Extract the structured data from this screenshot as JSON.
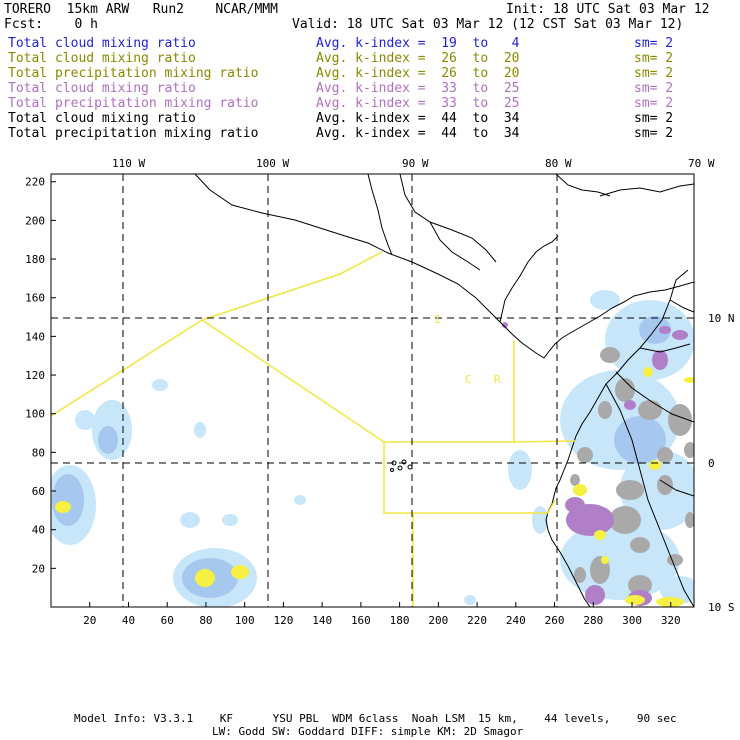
{
  "header": {
    "model": "TORERO  15km ARW   Run2    NCAR/MMM",
    "init": "Init: 18 UTC Sat 03 Mar 12",
    "fcst": "Fcst:    0 h",
    "valid": "Valid: 18 UTC Sat 03 Mar 12 (12 CST Sat 03 Mar 12)"
  },
  "legend": [
    {
      "field": "Total cloud mixing ratio",
      "index": "Avg. k-index =  19  to   4",
      "sm": "sm= 2",
      "color": "#1f1fd0"
    },
    {
      "field": "Total cloud mixing ratio",
      "index": "Avg. k-index =  26  to  20",
      "sm": "sm= 2",
      "color": "#8a8a00"
    },
    {
      "field": "Total precipitation mixing ratio",
      "index": "Avg. k-index =  26  to  20",
      "sm": "sm= 2",
      "color": "#8a8a00"
    },
    {
      "field": "Total cloud mixing ratio",
      "index": "Avg. k-index =  33  to  25",
      "sm": "sm= 2",
      "color": "#b070c0"
    },
    {
      "field": "Total precipitation mixing ratio",
      "index": "Avg. k-index =  33  to  25",
      "sm": "sm= 2",
      "color": "#b070c0"
    },
    {
      "field": "Total cloud mixing ratio",
      "index": "Avg. k-index =  44  to  34",
      "sm": "sm= 2",
      "color": "#000000"
    },
    {
      "field": "Total precipitation mixing ratio",
      "index": "Avg. k-index =  44  to  34",
      "sm": "sm= 2",
      "color": "#000000"
    }
  ],
  "map": {
    "lon_labels": [
      "110 W",
      "100 W",
      "90 W",
      "80 W",
      "70 W"
    ],
    "lat_labels": [
      "10 N",
      "0",
      "10 S"
    ],
    "x_ticks": [
      "20",
      "40",
      "60",
      "80",
      "100",
      "120",
      "140",
      "160",
      "180",
      "200",
      "220",
      "240",
      "260",
      "280",
      "300",
      "320"
    ],
    "y_ticks": [
      "20",
      "40",
      "60",
      "80",
      "100",
      "120",
      "140",
      "160",
      "180",
      "200",
      "220"
    ],
    "annotations": [
      "I",
      "C",
      "R"
    ]
  },
  "footer": {
    "line1": "Model Info: V3.3.1    KF      YSU PBL  WDM 6class  Noah LSM  15 km,    44 levels,    90 sec",
    "line2": "LW: Godd SW: Goddard DIFF: simple KM: 2D Smagor"
  },
  "colors": {
    "cloud_light": "#c8e6fa",
    "cloud_medium": "#a6c8ef",
    "precip_gray": "#a9a9a9",
    "precip_purple": "#b07fc8",
    "precip_yellow": "#f5f042",
    "boundary_yellow": "#f0e63c"
  }
}
